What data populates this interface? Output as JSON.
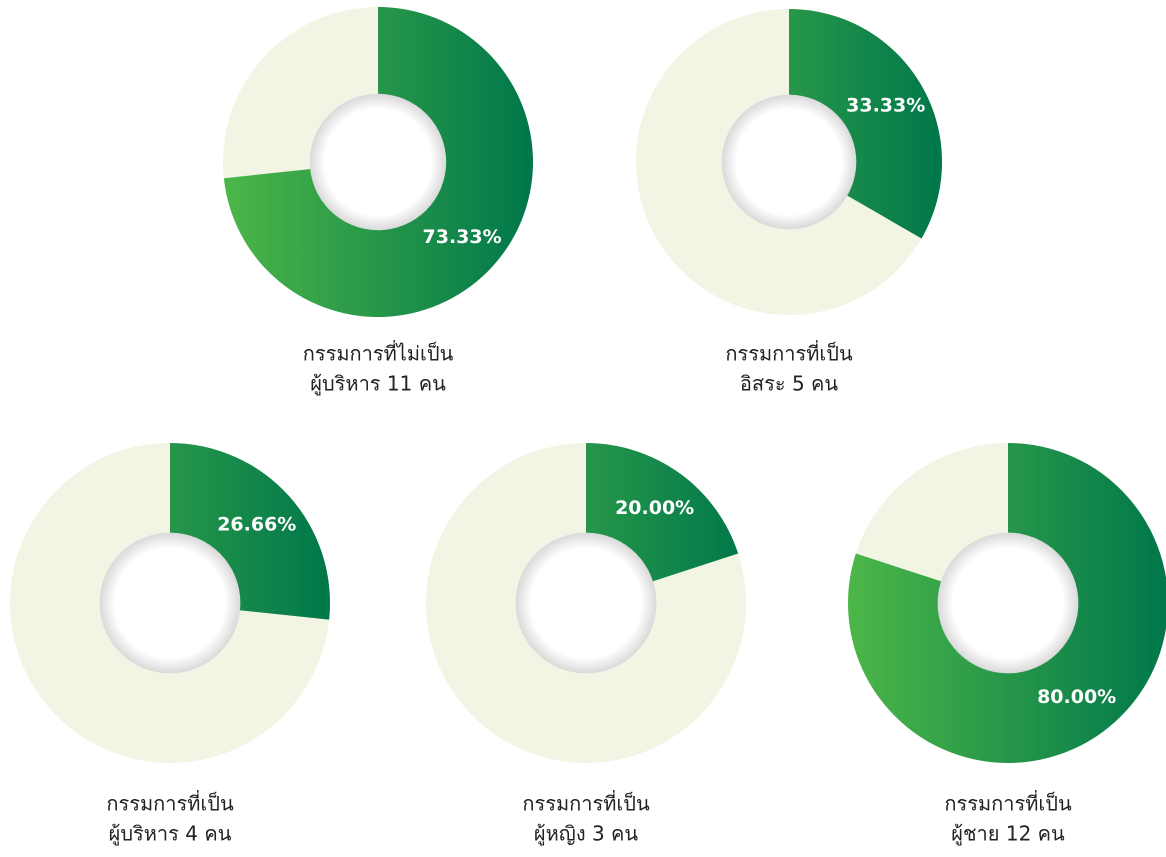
{
  "chart_data": [
    {
      "type": "donut",
      "title": [
        "กรรมการที่ไม่เป็น",
        "ผู้บริหาร 11 คน"
      ],
      "values": [
        73.33
      ],
      "value_labels": [
        "73.33%"
      ],
      "colors": [
        "#4cb648",
        "#00774a"
      ],
      "track_color": "#f2f4e4"
    },
    {
      "type": "donut",
      "title": [
        "กรรมการที่เป็น",
        "อิสระ 5 คน"
      ],
      "values": [
        33.33
      ],
      "value_labels": [
        "33.33%"
      ],
      "colors": [
        "#4cb648",
        "#00774a"
      ],
      "track_color": "#f2f4e4"
    },
    {
      "type": "donut",
      "title": [
        "กรรมการที่เป็น",
        "ผู้บริหาร 4 คน"
      ],
      "values": [
        26.66
      ],
      "value_labels": [
        "26.66%"
      ],
      "colors": [
        "#4cb648",
        "#00774a"
      ],
      "track_color": "#f2f4e4"
    },
    {
      "type": "donut",
      "title": [
        "กรรมการที่เป็น",
        "ผู้หญิง 3 คน"
      ],
      "values": [
        20.0
      ],
      "value_labels": [
        "20.00%"
      ],
      "colors": [
        "#4cb648",
        "#00774a"
      ],
      "track_color": "#f2f4e4"
    },
    {
      "type": "donut",
      "title": [
        "กรรมการที่เป็น",
        "ผู้ชาย 12 คน"
      ],
      "values": [
        80.0
      ],
      "value_labels": [
        "80.00%"
      ],
      "colors": [
        "#4cb648",
        "#00774a"
      ],
      "track_color": "#f2f4e4"
    }
  ]
}
